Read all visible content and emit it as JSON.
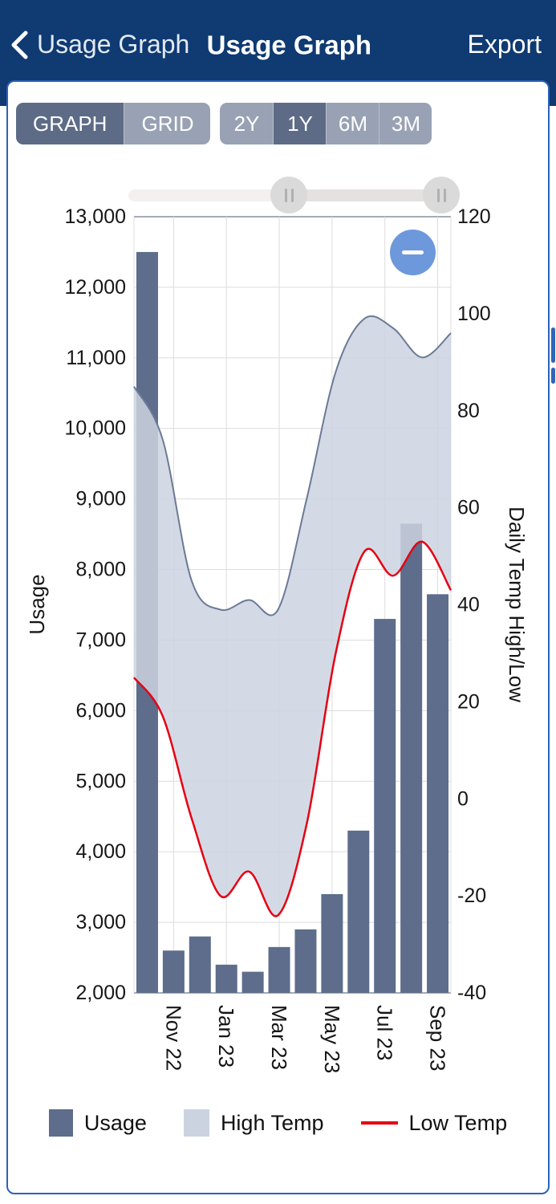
{
  "header": {
    "back_label": "Usage Graph",
    "title": "Usage Graph",
    "export_label": "Export",
    "background_color": "#0f3a72",
    "text_color": "#ffffff"
  },
  "toolbar": {
    "view_buttons": [
      {
        "label": "GRAPH",
        "selected": true
      },
      {
        "label": "GRID",
        "selected": false
      }
    ],
    "range_buttons": [
      {
        "label": "2Y",
        "selected": false
      },
      {
        "label": "1Y",
        "selected": true
      },
      {
        "label": "6M",
        "selected": false
      },
      {
        "label": "3M",
        "selected": false
      }
    ],
    "selected_color": "#5d6b87",
    "unselected_color": "#99a2b4"
  },
  "range_slider": {
    "handle_icon": "pause-bars",
    "handles": 2
  },
  "zoom_out_button": {
    "icon": "minus",
    "color": "#6d98dc"
  },
  "chart_data": {
    "type": "combo",
    "categories": [
      "Oct 22",
      "Nov 22",
      "Dec 22",
      "Jan 23",
      "Feb 23",
      "Mar 23",
      "Apr 23",
      "May 23",
      "Jun 23",
      "Jul 23",
      "Aug 23",
      "Sep 23"
    ],
    "x_tick_labels": [
      "Nov 22",
      "Jan 23",
      "Mar 23",
      "May 23",
      "Jul 23",
      "Sep 23"
    ],
    "x_tick_indices": [
      1,
      3,
      5,
      7,
      9,
      11
    ],
    "series": [
      {
        "name": "Usage",
        "type": "bar",
        "axis": "left",
        "color": "#5d6d8b",
        "values": [
          12500,
          2600,
          2800,
          2400,
          2300,
          2650,
          2900,
          3400,
          4300,
          7300,
          8650,
          7650
        ]
      },
      {
        "name": "High Temp",
        "type": "area",
        "axis": "right",
        "fill_color": "#ccd3e0",
        "line_color": "#6b7a96",
        "values": [
          85,
          74,
          45,
          39,
          41,
          39,
          62,
          88,
          99,
          97,
          91,
          96
        ]
      },
      {
        "name": "Low Temp",
        "type": "line",
        "axis": "right",
        "color": "#e60012",
        "values": [
          25,
          17,
          -4,
          -20,
          -15,
          -24,
          -5,
          30,
          51,
          46,
          53,
          43
        ]
      }
    ],
    "area_note": "High Temp area is filled down to the Low Temp line (high/low band)",
    "left_axis": {
      "label": "Usage",
      "min": 2000,
      "max": 13000,
      "tick_labels": [
        "13,000",
        "12,000",
        "11,000",
        "10,000",
        "9,000",
        "8,000",
        "7,000",
        "6,000",
        "5,000",
        "4,000",
        "3,000",
        "2,000"
      ]
    },
    "right_axis": {
      "label": "Daily Temp High/Low",
      "min": -40,
      "max": 120,
      "tick_labels": [
        "120",
        "100",
        "80",
        "60",
        "40",
        "20",
        "0",
        "-20",
        "-40"
      ]
    },
    "grid": true,
    "legend_position": "bottom"
  },
  "legend": {
    "items": [
      {
        "label": "Usage",
        "swatch": "bar",
        "color": "#5d6d8b"
      },
      {
        "label": "High Temp",
        "swatch": "area",
        "color": "#ccd3e0"
      },
      {
        "label": "Low Temp",
        "swatch": "line",
        "color": "#e60012"
      }
    ]
  }
}
